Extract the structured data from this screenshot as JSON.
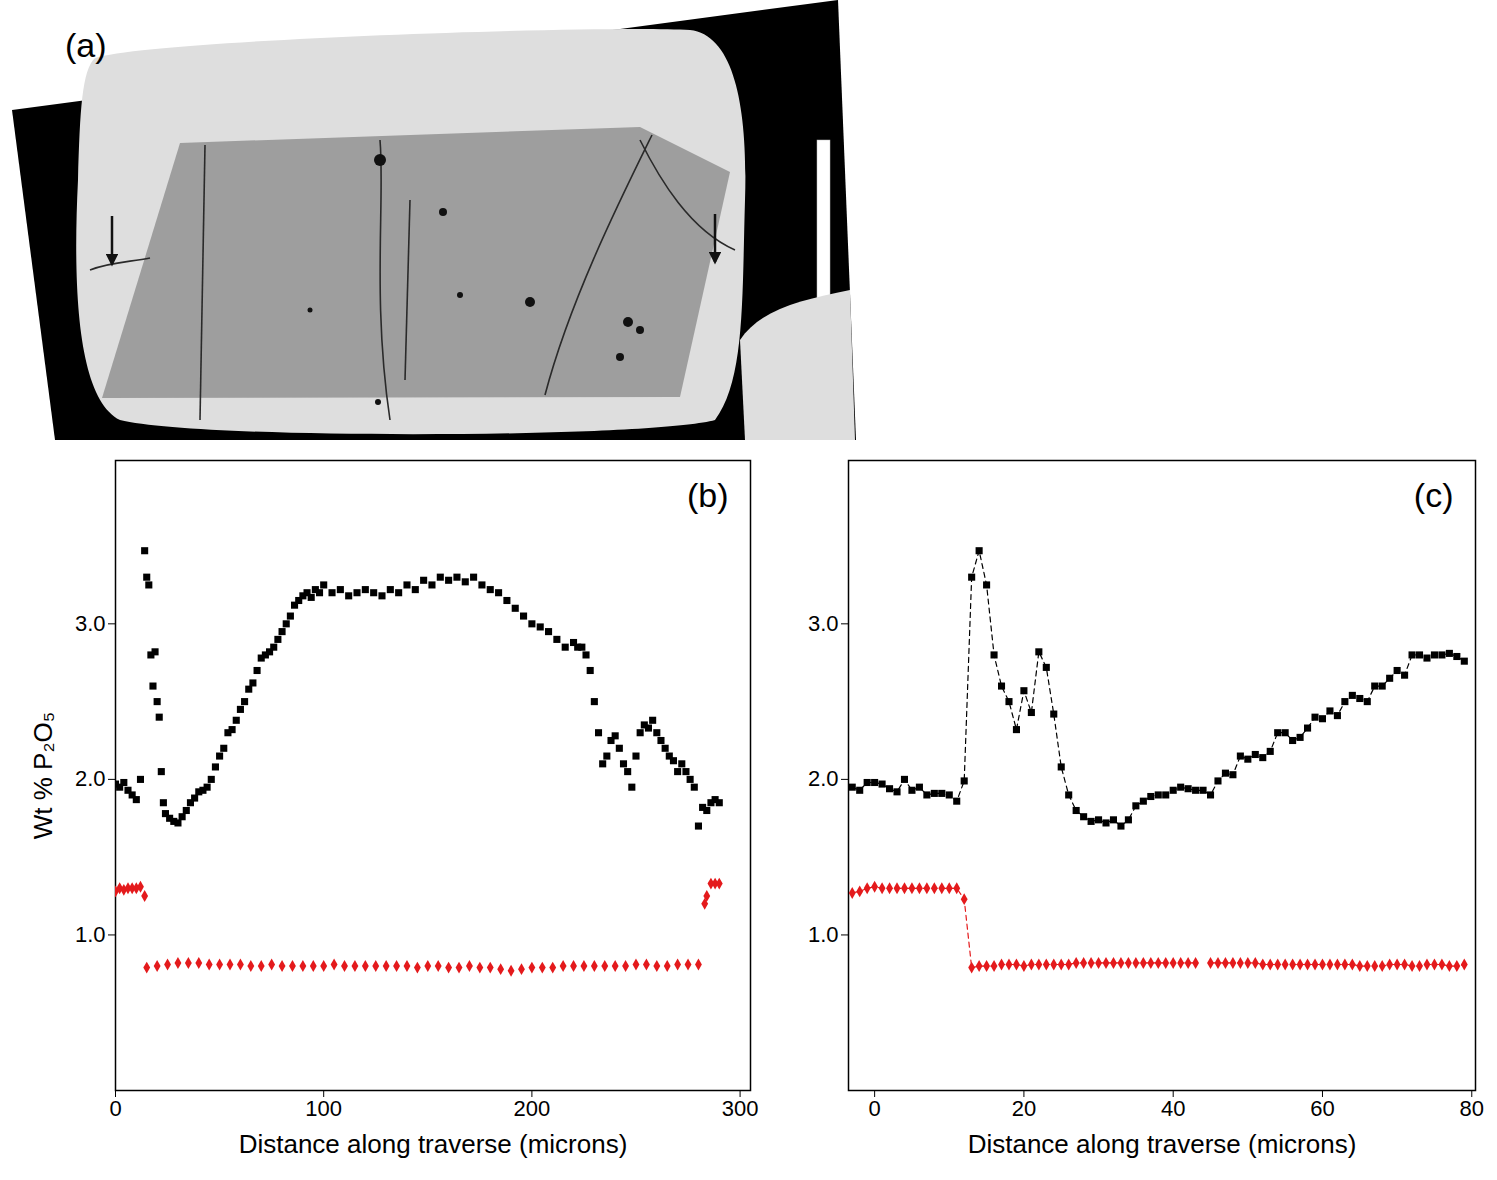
{
  "chart_data": [
    {
      "type": "image",
      "title": "(a)"
    },
    {
      "type": "scatter",
      "title": "(b)",
      "x_label": "Distance along traverse (microns)",
      "y_label": "Wt % P₂O₅",
      "xlim": [
        0,
        305
      ],
      "xticks": [
        0,
        100,
        200,
        300
      ],
      "ylim": [
        0,
        4.05
      ],
      "yticks": [
        {
          "value": 1,
          "label": "1.0"
        },
        {
          "value": 2,
          "label": "2.0"
        },
        {
          "value": 3,
          "label": "3.0"
        }
      ],
      "series": [
        {
          "color": "#000000",
          "marker": "square",
          "line_style": "none",
          "x": [
            0,
            2,
            4,
            6,
            8,
            10,
            12,
            14,
            15,
            16,
            17,
            18,
            19,
            20,
            21,
            22,
            23,
            24,
            26,
            28,
            30,
            32,
            34,
            36,
            38,
            40,
            42,
            44,
            46,
            48,
            50,
            52,
            54,
            56,
            58,
            60,
            62,
            64,
            66,
            68,
            70,
            72,
            74,
            76,
            78,
            80,
            82,
            84,
            86,
            88,
            90,
            92,
            94,
            96,
            98,
            100,
            104,
            108,
            112,
            116,
            120,
            124,
            128,
            132,
            136,
            140,
            144,
            148,
            152,
            156,
            160,
            164,
            168,
            172,
            176,
            180,
            184,
            188,
            192,
            196,
            200,
            204,
            208,
            212,
            216,
            220,
            222,
            224,
            226,
            228,
            230,
            232,
            234,
            236,
            238,
            240,
            242,
            244,
            246,
            248,
            250,
            252,
            254,
            256,
            258,
            260,
            262,
            264,
            266,
            268,
            270,
            272,
            274,
            276,
            278,
            280,
            282,
            284,
            286,
            288,
            290
          ],
          "values": [
            1.97,
            1.95,
            1.98,
            1.93,
            1.9,
            1.87,
            2.0,
            3.47,
            3.3,
            3.25,
            2.8,
            2.6,
            2.82,
            2.5,
            2.4,
            2.05,
            1.85,
            1.78,
            1.75,
            1.73,
            1.72,
            1.76,
            1.8,
            1.85,
            1.88,
            1.92,
            1.93,
            1.95,
            2.0,
            2.08,
            2.15,
            2.2,
            2.3,
            2.32,
            2.38,
            2.45,
            2.5,
            2.58,
            2.62,
            2.7,
            2.78,
            2.8,
            2.82,
            2.85,
            2.9,
            2.95,
            3.0,
            3.05,
            3.12,
            3.15,
            3.18,
            3.2,
            3.17,
            3.22,
            3.2,
            3.25,
            3.2,
            3.22,
            3.18,
            3.2,
            3.22,
            3.2,
            3.18,
            3.22,
            3.2,
            3.25,
            3.22,
            3.28,
            3.25,
            3.3,
            3.28,
            3.3,
            3.27,
            3.3,
            3.25,
            3.22,
            3.2,
            3.15,
            3.1,
            3.05,
            3.0,
            2.98,
            2.95,
            2.9,
            2.85,
            2.88,
            2.85,
            2.85,
            2.8,
            2.7,
            2.5,
            2.3,
            2.1,
            2.15,
            2.25,
            2.28,
            2.2,
            2.1,
            2.05,
            1.95,
            2.15,
            2.3,
            2.35,
            2.33,
            2.38,
            2.3,
            2.25,
            2.2,
            2.15,
            2.12,
            2.05,
            2.1,
            2.05,
            2.0,
            1.95,
            1.7,
            1.82,
            1.8,
            1.85,
            1.87,
            1.85
          ]
        },
        {
          "color": "#e41a1c",
          "marker": "diamond",
          "line_style": "none",
          "x": [
            0,
            2,
            4,
            6,
            8,
            10,
            12,
            14,
            15,
            20,
            25,
            30,
            35,
            40,
            45,
            50,
            55,
            60,
            65,
            70,
            75,
            80,
            85,
            90,
            95,
            100,
            105,
            110,
            115,
            120,
            125,
            130,
            135,
            140,
            145,
            150,
            155,
            160,
            165,
            170,
            175,
            180,
            185,
            190,
            195,
            200,
            205,
            210,
            215,
            220,
            225,
            230,
            235,
            240,
            245,
            250,
            255,
            260,
            265,
            270,
            275,
            280,
            283,
            284,
            286,
            288,
            290
          ],
          "values": [
            1.28,
            1.3,
            1.29,
            1.3,
            1.3,
            1.3,
            1.31,
            1.25,
            0.79,
            0.8,
            0.81,
            0.82,
            0.82,
            0.82,
            0.81,
            0.81,
            0.81,
            0.81,
            0.8,
            0.8,
            0.81,
            0.8,
            0.8,
            0.8,
            0.8,
            0.8,
            0.81,
            0.8,
            0.8,
            0.8,
            0.8,
            0.8,
            0.8,
            0.8,
            0.79,
            0.8,
            0.8,
            0.79,
            0.79,
            0.8,
            0.79,
            0.79,
            0.78,
            0.77,
            0.78,
            0.79,
            0.79,
            0.79,
            0.8,
            0.8,
            0.8,
            0.8,
            0.8,
            0.8,
            0.8,
            0.81,
            0.81,
            0.8,
            0.8,
            0.81,
            0.81,
            0.81,
            1.2,
            1.25,
            1.33,
            1.33,
            1.33
          ]
        }
      ]
    },
    {
      "type": "scatter",
      "title": "(c)",
      "x_label": "Distance along traverse (microns)",
      "xlim": [
        -3.5,
        80.5
      ],
      "xticks": [
        0,
        20,
        40,
        60,
        80
      ],
      "ylim": [
        0,
        4.05
      ],
      "yticks": [
        {
          "value": 1,
          "label": "1.0"
        },
        {
          "value": 2,
          "label": "2.0"
        },
        {
          "value": 3,
          "label": "3.0"
        }
      ],
      "series": [
        {
          "color": "#000000",
          "marker": "square",
          "line_style": "dashed",
          "x": [
            -3,
            -2,
            -1,
            0,
            1,
            2,
            3,
            4,
            5,
            6,
            7,
            8,
            9,
            10,
            11,
            12,
            13,
            14,
            15,
            16,
            17,
            18,
            19,
            20,
            21,
            22,
            23,
            24,
            25,
            26,
            27,
            28,
            29,
            30,
            31,
            32,
            33,
            34,
            35,
            36,
            37,
            38,
            39,
            40,
            41,
            42,
            43,
            44,
            45,
            46,
            47,
            48,
            49,
            50,
            51,
            52,
            53,
            54,
            55,
            56,
            57,
            58,
            59,
            60,
            61,
            62,
            63,
            64,
            65,
            66,
            67,
            68,
            69,
            70,
            71,
            72,
            73,
            74,
            75,
            76,
            77,
            78,
            79
          ],
          "values": [
            1.95,
            1.93,
            1.98,
            1.98,
            1.97,
            1.94,
            1.92,
            2.0,
            1.93,
            1.95,
            1.9,
            1.91,
            1.91,
            1.9,
            1.86,
            1.99,
            3.3,
            3.47,
            3.25,
            2.8,
            2.6,
            2.5,
            2.32,
            2.57,
            2.43,
            2.82,
            2.72,
            2.42,
            2.08,
            1.9,
            1.8,
            1.76,
            1.73,
            1.74,
            1.72,
            1.74,
            1.7,
            1.74,
            1.83,
            1.86,
            1.89,
            1.9,
            1.9,
            1.93,
            1.95,
            1.94,
            1.93,
            1.93,
            1.9,
            1.99,
            2.04,
            2.03,
            2.15,
            2.13,
            2.16,
            2.14,
            2.18,
            2.3,
            2.3,
            2.25,
            2.27,
            2.33,
            2.4,
            2.39,
            2.44,
            2.41,
            2.5,
            2.54,
            2.52,
            2.5,
            2.6,
            2.6,
            2.65,
            2.7,
            2.67,
            2.8,
            2.8,
            2.78,
            2.8,
            2.8,
            2.81,
            2.79,
            2.76
          ]
        },
        {
          "color": "#e41a1c",
          "marker": "diamond",
          "line_style": "dashed",
          "x": [
            -3,
            -2,
            -1,
            0,
            1,
            2,
            3,
            4,
            5,
            6,
            7,
            8,
            9,
            10,
            11,
            12,
            13,
            14,
            15,
            16,
            17,
            18,
            19,
            20,
            21,
            22,
            23,
            24,
            25,
            26,
            27,
            28,
            29,
            30,
            31,
            32,
            33,
            34,
            35,
            36,
            37,
            38,
            39,
            40,
            41,
            42,
            43,
            44,
            45,
            46,
            47,
            48,
            49,
            50,
            51,
            52,
            53,
            54,
            55,
            56,
            57,
            58,
            59,
            60,
            61,
            62,
            63,
            64,
            65,
            66,
            67,
            68,
            69,
            70,
            71,
            72,
            73,
            74,
            75,
            76,
            77,
            78,
            79
          ],
          "values": [
            1.27,
            1.28,
            1.3,
            1.31,
            1.3,
            1.3,
            1.3,
            1.3,
            1.3,
            1.3,
            1.3,
            1.3,
            1.3,
            1.3,
            1.3,
            1.23,
            0.79,
            0.8,
            0.8,
            0.8,
            0.81,
            0.81,
            0.81,
            0.8,
            0.81,
            0.81,
            0.81,
            0.81,
            0.81,
            0.81,
            0.82,
            0.82,
            0.82,
            0.82,
            0.82,
            0.82,
            0.82,
            0.82,
            0.82,
            0.82,
            0.82,
            0.82,
            0.82,
            0.82,
            0.82,
            0.82,
            0.82,
            null,
            0.82,
            0.82,
            0.82,
            0.82,
            0.82,
            0.82,
            0.82,
            0.81,
            0.81,
            0.81,
            0.81,
            0.81,
            0.81,
            0.81,
            0.81,
            0.81,
            0.81,
            0.81,
            0.81,
            0.81,
            0.8,
            0.8,
            0.8,
            0.8,
            0.81,
            0.81,
            0.81,
            0.8,
            0.8,
            0.81,
            0.81,
            0.81,
            0.8,
            0.8,
            0.81
          ]
        }
      ]
    }
  ]
}
